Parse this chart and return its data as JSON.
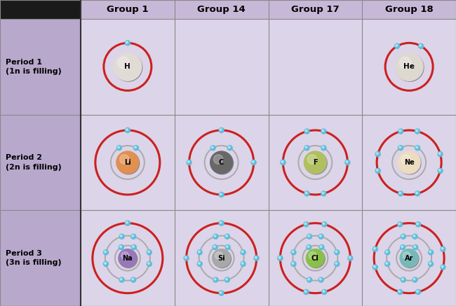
{
  "groups": [
    "Group 1",
    "Group 14",
    "Group 17",
    "Group 18"
  ],
  "periods": [
    {
      "label": "Period 1\n(1n is filling)"
    },
    {
      "label": "Period 2\n(2n is filling)"
    },
    {
      "label": "Period 3\n(3n is filling)"
    }
  ],
  "cell_bg": "#dcd4e8",
  "header_bg": "#c8b8d8",
  "period_bg": "#b8a8cc",
  "top_left_bg": "#1a1a1a",
  "grid_color": "#888888",
  "outer_border": "#333333",
  "atoms": [
    {
      "symbol": "H",
      "period": 0,
      "group": 0,
      "nucleus_color": "#e0dbd5",
      "active_shell": 0,
      "electrons_per_shell": [
        1
      ]
    },
    {
      "symbol": "He",
      "period": 0,
      "group": 3,
      "nucleus_color": "#ddd8d0",
      "active_shell": 0,
      "electrons_per_shell": [
        2
      ]
    },
    {
      "symbol": "Li",
      "period": 1,
      "group": 0,
      "nucleus_color": "#e09050",
      "active_shell": 1,
      "electrons_per_shell": [
        2,
        1
      ]
    },
    {
      "symbol": "C",
      "period": 1,
      "group": 1,
      "nucleus_color": "#686868",
      "active_shell": 1,
      "electrons_per_shell": [
        2,
        4
      ]
    },
    {
      "symbol": "F",
      "period": 1,
      "group": 2,
      "nucleus_color": "#b0c060",
      "active_shell": 1,
      "electrons_per_shell": [
        2,
        7
      ]
    },
    {
      "symbol": "Ne",
      "period": 1,
      "group": 3,
      "nucleus_color": "#ecdcc0",
      "active_shell": 1,
      "electrons_per_shell": [
        2,
        8
      ]
    },
    {
      "symbol": "Na",
      "period": 2,
      "group": 0,
      "nucleus_color": "#9878b8",
      "active_shell": 2,
      "electrons_per_shell": [
        2,
        8,
        1
      ]
    },
    {
      "symbol": "Si",
      "period": 2,
      "group": 1,
      "nucleus_color": "#a8a8a8",
      "active_shell": 2,
      "electrons_per_shell": [
        2,
        8,
        4
      ]
    },
    {
      "symbol": "Cl",
      "period": 2,
      "group": 2,
      "nucleus_color": "#88c048",
      "active_shell": 2,
      "electrons_per_shell": [
        2,
        8,
        7
      ]
    },
    {
      "symbol": "Ar",
      "period": 2,
      "group": 3,
      "nucleus_color": "#78b8b8",
      "active_shell": 2,
      "electrons_per_shell": [
        2,
        8,
        8
      ]
    }
  ],
  "electron_color": "#60bcd8",
  "electron_highlight": "#a8e4f4",
  "active_shell_color": "#cc2020",
  "inactive_shell_color": "#aaaaaa",
  "active_shell_lw": 2.2,
  "inactive_shell_lw": 1.4
}
